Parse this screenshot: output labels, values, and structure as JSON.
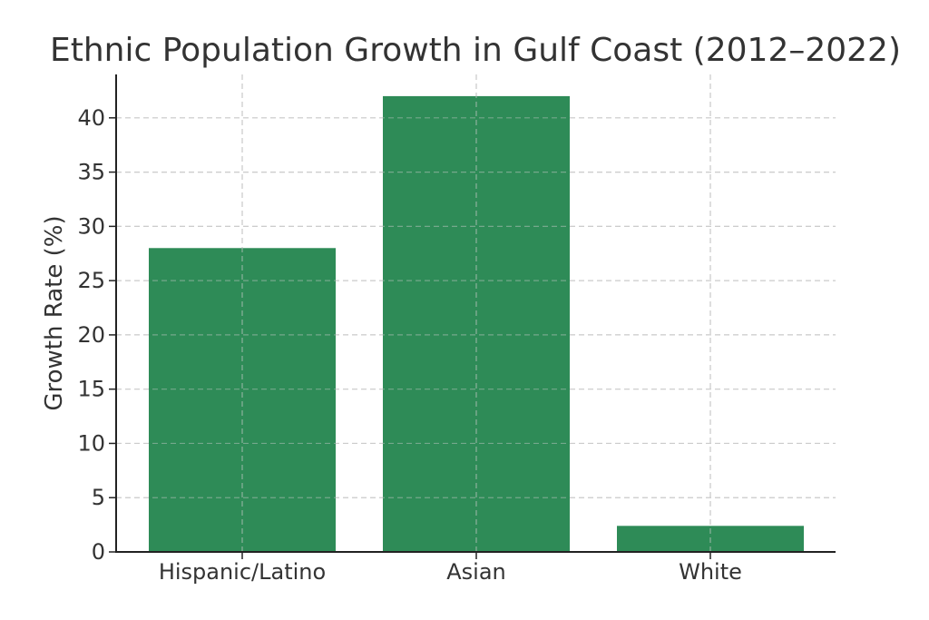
{
  "chart_data": {
    "type": "bar",
    "title": "Ethnic Population Growth in Gulf Coast (2012–2022)",
    "xlabel": "",
    "ylabel": "Growth Rate (%)",
    "categories": [
      "Hispanic/Latino",
      "Asian",
      "White"
    ],
    "values": [
      28,
      42,
      2.4
    ],
    "ylim": [
      0,
      44
    ],
    "yticks": [
      0,
      5,
      10,
      15,
      20,
      25,
      30,
      35,
      40
    ],
    "grid": true,
    "bar_color": "#2e8b57"
  }
}
